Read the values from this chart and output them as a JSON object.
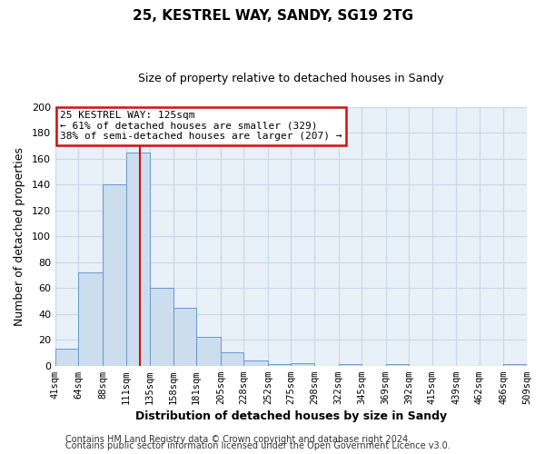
{
  "title": "25, KESTREL WAY, SANDY, SG19 2TG",
  "subtitle": "Size of property relative to detached houses in Sandy",
  "xlabel": "Distribution of detached houses by size in Sandy",
  "ylabel": "Number of detached properties",
  "bin_edges": [
    41,
    64,
    88,
    111,
    135,
    158,
    181,
    205,
    228,
    252,
    275,
    298,
    322,
    345,
    369,
    392,
    415,
    439,
    462,
    486,
    509
  ],
  "bar_heights": [
    13,
    72,
    140,
    165,
    60,
    45,
    22,
    10,
    4,
    1,
    2,
    0,
    1,
    0,
    1,
    0,
    0,
    0,
    0,
    1
  ],
  "bar_color": "#ccdded",
  "bar_edge_color": "#6699cc",
  "vline_x": 125,
  "vline_color": "#cc1111",
  "annotation_line1": "25 KESTREL WAY: 125sqm",
  "annotation_line2": "← 61% of detached houses are smaller (329)",
  "annotation_line3": "38% of semi-detached houses are larger (207) →",
  "annotation_box_color": "#ffffff",
  "annotation_box_edge_color": "#cc1111",
  "ylim": [
    0,
    200
  ],
  "yticks": [
    0,
    20,
    40,
    60,
    80,
    100,
    120,
    140,
    160,
    180,
    200
  ],
  "grid_color": "#c8d8e8",
  "bg_color": "#e8f0f8",
  "plot_bg_color": "#e8f0f8",
  "footer_line1": "Contains HM Land Registry data © Crown copyright and database right 2024.",
  "footer_line2": "Contains public sector information licensed under the Open Government Licence v3.0.",
  "title_fontsize": 11,
  "subtitle_fontsize": 9,
  "axis_label_fontsize": 9,
  "tick_fontsize": 7.5,
  "footer_fontsize": 7
}
